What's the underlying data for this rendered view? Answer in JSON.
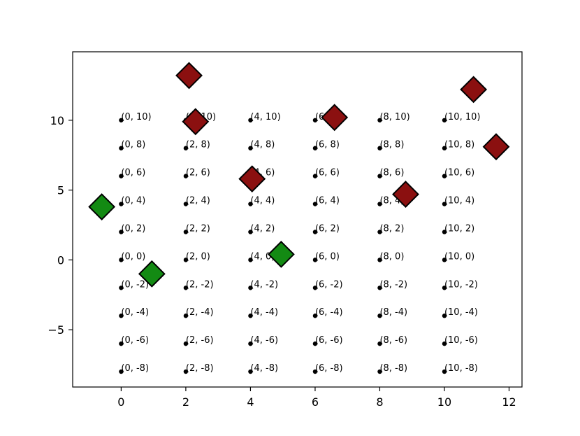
{
  "chart_data": {
    "type": "scatter",
    "title": "",
    "xlabel": "",
    "ylabel": "",
    "xlim": [
      -1.5,
      12.4
    ],
    "ylim": [
      -9.1,
      14.9
    ],
    "x_ticks": [
      0,
      2,
      4,
      6,
      8,
      10,
      12
    ],
    "y_ticks": [
      -5,
      0,
      5,
      10
    ],
    "x_tick_labels": [
      "0",
      "2",
      "4",
      "6",
      "8",
      "10",
      "12"
    ],
    "y_tick_labels": [
      "−5",
      "0",
      "5",
      "10"
    ],
    "grid": false,
    "legend": "none",
    "grid_points": {
      "color": "#000000",
      "points": [
        {
          "x": 0,
          "y": 10,
          "label": "(0, 10)"
        },
        {
          "x": 0,
          "y": 8,
          "label": "(0, 8)"
        },
        {
          "x": 0,
          "y": 6,
          "label": "(0, 6)"
        },
        {
          "x": 0,
          "y": 4,
          "label": "(0, 4)"
        },
        {
          "x": 0,
          "y": 2,
          "label": "(0, 2)"
        },
        {
          "x": 0,
          "y": 0,
          "label": "(0, 0)"
        },
        {
          "x": 0,
          "y": -2,
          "label": "(0, -2)"
        },
        {
          "x": 0,
          "y": -4,
          "label": "(0, -4)"
        },
        {
          "x": 0,
          "y": -6,
          "label": "(0, -6)"
        },
        {
          "x": 0,
          "y": -8,
          "label": "(0, -8)"
        },
        {
          "x": 2,
          "y": 10,
          "label": "(2, 10)"
        },
        {
          "x": 2,
          "y": 8,
          "label": "(2, 8)"
        },
        {
          "x": 2,
          "y": 6,
          "label": "(2, 6)"
        },
        {
          "x": 2,
          "y": 4,
          "label": "(2, 4)"
        },
        {
          "x": 2,
          "y": 2,
          "label": "(2, 2)"
        },
        {
          "x": 2,
          "y": 0,
          "label": "(2, 0)"
        },
        {
          "x": 2,
          "y": -2,
          "label": "(2, -2)"
        },
        {
          "x": 2,
          "y": -4,
          "label": "(2, -4)"
        },
        {
          "x": 2,
          "y": -6,
          "label": "(2, -6)"
        },
        {
          "x": 2,
          "y": -8,
          "label": "(2, -8)"
        },
        {
          "x": 4,
          "y": 10,
          "label": "(4, 10)"
        },
        {
          "x": 4,
          "y": 8,
          "label": "(4, 8)"
        },
        {
          "x": 4,
          "y": 6,
          "label": "(4, 6)"
        },
        {
          "x": 4,
          "y": 4,
          "label": "(4, 4)"
        },
        {
          "x": 4,
          "y": 2,
          "label": "(4, 2)"
        },
        {
          "x": 4,
          "y": 0,
          "label": "(4, 0)"
        },
        {
          "x": 4,
          "y": -2,
          "label": "(4, -2)"
        },
        {
          "x": 4,
          "y": -4,
          "label": "(4, -4)"
        },
        {
          "x": 4,
          "y": -6,
          "label": "(4, -6)"
        },
        {
          "x": 4,
          "y": -8,
          "label": "(4, -8)"
        },
        {
          "x": 6,
          "y": 10,
          "label": "(6, 10)"
        },
        {
          "x": 6,
          "y": 8,
          "label": "(6, 8)"
        },
        {
          "x": 6,
          "y": 6,
          "label": "(6, 6)"
        },
        {
          "x": 6,
          "y": 4,
          "label": "(6, 4)"
        },
        {
          "x": 6,
          "y": 2,
          "label": "(6, 2)"
        },
        {
          "x": 6,
          "y": 0,
          "label": "(6, 0)"
        },
        {
          "x": 6,
          "y": -2,
          "label": "(6, -2)"
        },
        {
          "x": 6,
          "y": -4,
          "label": "(6, -4)"
        },
        {
          "x": 6,
          "y": -6,
          "label": "(6, -6)"
        },
        {
          "x": 6,
          "y": -8,
          "label": "(6, -8)"
        },
        {
          "x": 8,
          "y": 10,
          "label": "(8, 10)"
        },
        {
          "x": 8,
          "y": 8,
          "label": "(8, 8)"
        },
        {
          "x": 8,
          "y": 6,
          "label": "(8, 6)"
        },
        {
          "x": 8,
          "y": 4,
          "label": "(8, 4)"
        },
        {
          "x": 8,
          "y": 2,
          "label": "(8, 2)"
        },
        {
          "x": 8,
          "y": 0,
          "label": "(8, 0)"
        },
        {
          "x": 8,
          "y": -2,
          "label": "(8, -2)"
        },
        {
          "x": 8,
          "y": -4,
          "label": "(8, -4)"
        },
        {
          "x": 8,
          "y": -6,
          "label": "(8, -6)"
        },
        {
          "x": 8,
          "y": -8,
          "label": "(8, -8)"
        },
        {
          "x": 10,
          "y": 10,
          "label": "(10, 10)"
        },
        {
          "x": 10,
          "y": 8,
          "label": "(10, 8)"
        },
        {
          "x": 10,
          "y": 6,
          "label": "(10, 6)"
        },
        {
          "x": 10,
          "y": 4,
          "label": "(10, 4)"
        },
        {
          "x": 10,
          "y": 2,
          "label": "(10, 2)"
        },
        {
          "x": 10,
          "y": 0,
          "label": "(10, 0)"
        },
        {
          "x": 10,
          "y": -2,
          "label": "(10, -2)"
        },
        {
          "x": 10,
          "y": -4,
          "label": "(10, -4)"
        },
        {
          "x": 10,
          "y": -6,
          "label": "(10, -6)"
        },
        {
          "x": 10,
          "y": -8,
          "label": "(10, -8)"
        }
      ]
    },
    "series": [
      {
        "marker": "diamond",
        "color": "#8b1010",
        "edgecolor": "#000000",
        "points": [
          {
            "x": 2.1,
            "y": 13.2
          },
          {
            "x": 2.3,
            "y": 9.9
          },
          {
            "x": 4.05,
            "y": 5.8
          },
          {
            "x": 6.6,
            "y": 10.2
          },
          {
            "x": 8.8,
            "y": 4.7
          },
          {
            "x": 10.9,
            "y": 12.2
          },
          {
            "x": 11.6,
            "y": 8.1
          }
        ]
      },
      {
        "marker": "diamond",
        "color": "#138a13",
        "edgecolor": "#000000",
        "points": [
          {
            "x": -0.6,
            "y": 3.8
          },
          {
            "x": 0.95,
            "y": -1.0
          },
          {
            "x": 4.95,
            "y": 0.4
          }
        ]
      }
    ]
  }
}
